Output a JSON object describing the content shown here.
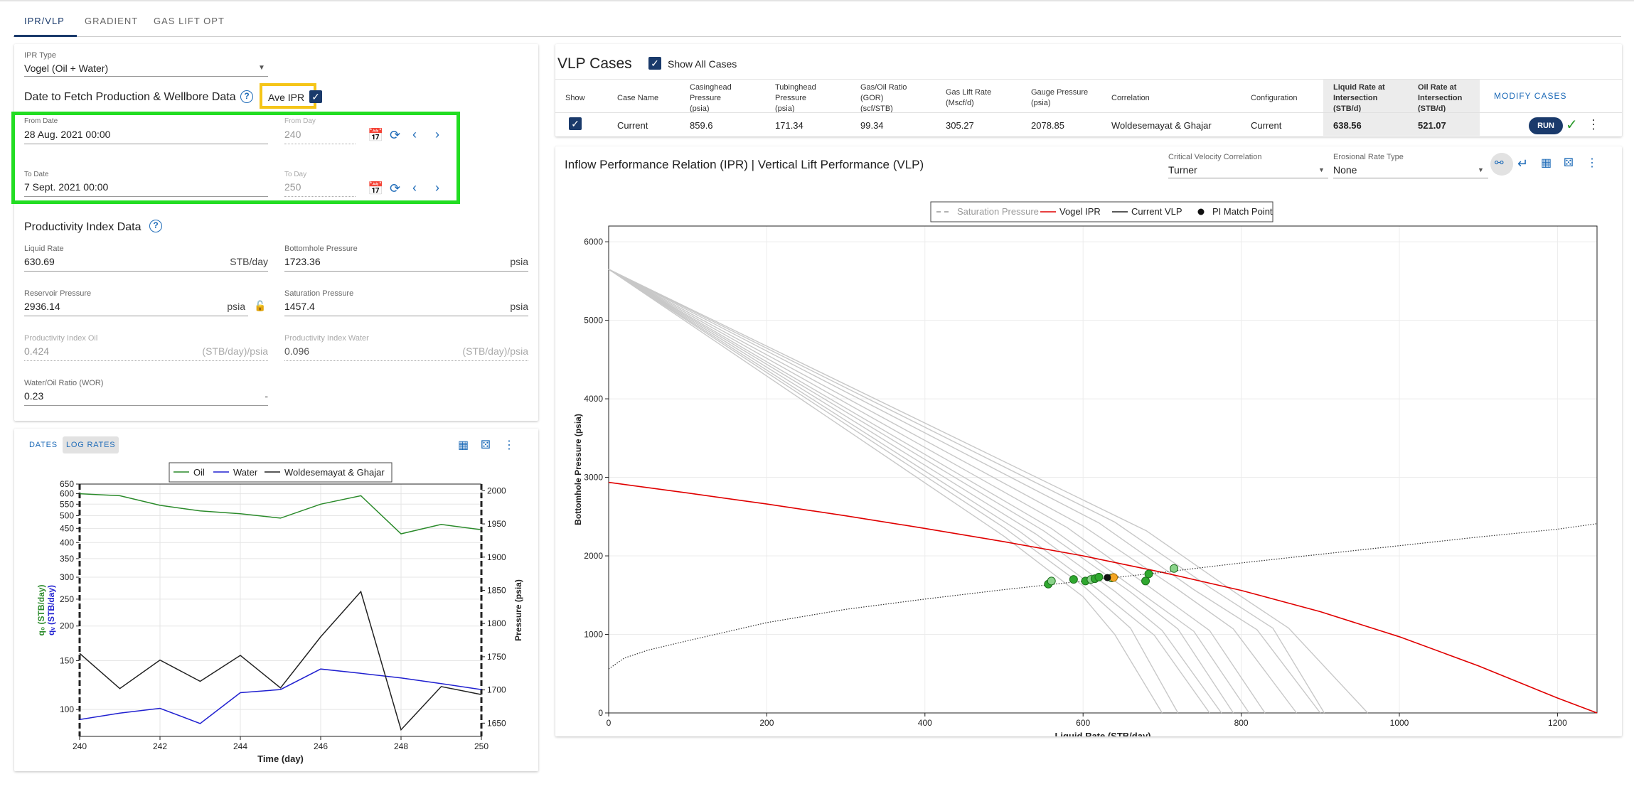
{
  "tabs": [
    "IPR/VLP",
    "GRADIENT",
    "GAS LIFT OPT"
  ],
  "ipr_panel": {
    "ipr_type_label": "IPR Type",
    "ipr_type_value": "Vogel (Oil + Water)",
    "date_section_title": "Date to Fetch Production & Wellbore Data",
    "ave_ipr_label": "Ave IPR",
    "from_date_label": "From Date",
    "from_date_value": "28 Aug. 2021 00:00",
    "from_day_label": "From Day",
    "from_day_value": "240",
    "to_date_label": "To Date",
    "to_date_value": "7 Sept. 2021 00:00",
    "to_day_label": "To Day",
    "to_day_value": "250",
    "pi_section_title": "Productivity Index Data",
    "liquid_rate_label": "Liquid Rate",
    "liquid_rate_value": "630.69",
    "liquid_rate_unit": "STB/day",
    "bhp_label": "Bottomhole Pressure",
    "bhp_value": "1723.36",
    "bhp_unit": "psia",
    "res_pressure_label": "Reservoir Pressure",
    "res_pressure_value": "2936.14",
    "res_pressure_unit": "psia",
    "sat_pressure_label": "Saturation Pressure",
    "sat_pressure_value": "1457.4",
    "sat_pressure_unit": "psia",
    "pi_oil_label": "Productivity Index Oil",
    "pi_oil_value": "0.424",
    "pi_oil_unit": "(STB/day)/psia",
    "pi_water_label": "Productivity Index Water",
    "pi_water_value": "0.096",
    "pi_water_unit": "(STB/day)/psia",
    "wor_label": "Water/Oil Ratio (WOR)",
    "wor_value": "0.23",
    "wor_unit": "-"
  },
  "rates_panel": {
    "dates_btn": "DATES",
    "log_rates_btn": "LOG RATES"
  },
  "vlp": {
    "title": "VLP Cases",
    "show_all_label": "Show All Cases",
    "headers": [
      [
        "Show"
      ],
      [
        "Case Name"
      ],
      [
        "Casinghead",
        "Pressure",
        "(psia)"
      ],
      [
        "Tubinghead",
        "Pressure",
        "(psia)"
      ],
      [
        "Gas/Oil Ratio",
        "(GOR)",
        "(scf/STB)"
      ],
      [
        "Gas Lift Rate",
        "(Mscf/d)"
      ],
      [
        "Gauge Pressure",
        "(psia)"
      ],
      [
        "Correlation"
      ],
      [
        "Configuration"
      ],
      [
        "Liquid Rate at",
        "Intersection",
        "(STB/d)"
      ],
      [
        "Oil Rate at",
        "Intersection",
        "(STB/d)"
      ]
    ],
    "modify_btn": "MODIFY CASES",
    "row": {
      "case_name": "Current",
      "casinghead": "859.6",
      "tubinghead": "171.34",
      "gor": "99.34",
      "gas_lift": "305.27",
      "gauge": "2078.85",
      "correlation": "Woldesemayat & Ghajar",
      "configuration": "Current",
      "liq_rate": "638.56",
      "oil_rate": "521.07",
      "run_btn": "RUN"
    }
  },
  "main_chart_panel": {
    "title": "Inflow Performance Relation (IPR) | Vertical Lift Performance (VLP)",
    "crit_vel_label": "Critical Velocity Correlation",
    "crit_vel_value": "Turner",
    "erosional_label": "Erosional Rate Type",
    "erosional_value": "None"
  },
  "colors": {
    "accent": "#1a3a6b",
    "link": "#1e6bb8",
    "green_box": "#22dd22",
    "yellow_box": "#f5c518",
    "ipr": "#e00000",
    "oil": "#2a8a2a",
    "water": "#2020d0"
  },
  "chart_data": [
    {
      "type": "line",
      "id": "ipr-vlp",
      "xlabel": "Liquid Rate (STB/day)",
      "ylabel": "Bottomhole Pressure (psia)",
      "xlim": [
        0,
        1250
      ],
      "ylim": [
        0,
        6200
      ],
      "xticks": [
        0,
        200,
        400,
        600,
        800,
        1000,
        1200
      ],
      "yticks": [
        0,
        1000,
        2000,
        3000,
        4000,
        5000,
        6000
      ],
      "legend": [
        "Saturation Pressure",
        "Vogel IPR",
        "Current VLP",
        "PI Match Point"
      ],
      "ipr": {
        "name": "Vogel IPR",
        "x": [
          0,
          100,
          200,
          300,
          400,
          500,
          600,
          700,
          800,
          900,
          1000,
          1100,
          1200,
          1250
        ],
        "y": [
          2936,
          2800,
          2660,
          2510,
          2350,
          2180,
          2000,
          1790,
          1560,
          1290,
          970,
          600,
          190,
          0
        ]
      },
      "vlp": {
        "name": "Current VLP",
        "x": [
          0,
          20,
          50,
          100,
          200,
          300,
          400,
          500,
          600,
          700,
          800,
          900,
          1000,
          1100,
          1200,
          1250
        ],
        "y": [
          560,
          700,
          800,
          920,
          1150,
          1320,
          1450,
          1570,
          1680,
          1790,
          1910,
          2020,
          2130,
          2240,
          2340,
          2410
        ]
      },
      "pi_match_point": {
        "x": 630.69,
        "y": 1723.36
      },
      "intersection_point": {
        "x": 638.56,
        "y": 1725
      },
      "vlp_family": [
        {
          "x": [
            0,
            500,
            600,
            640,
            700
          ],
          "y": [
            5650,
            2250,
            1480,
            1000,
            0
          ]
        },
        {
          "x": [
            0,
            500,
            600,
            660,
            720
          ],
          "y": [
            5650,
            2360,
            1620,
            1080,
            0
          ]
        },
        {
          "x": [
            0,
            520,
            620,
            690,
            760
          ],
          "y": [
            5650,
            2310,
            1560,
            990,
            0
          ]
        },
        {
          "x": [
            0,
            540,
            640,
            700,
            775
          ],
          "y": [
            5650,
            2280,
            1550,
            1050,
            0
          ]
        },
        {
          "x": [
            0,
            550,
            660,
            720,
            790
          ],
          "y": [
            5650,
            2320,
            1540,
            1070,
            0
          ]
        },
        {
          "x": [
            0,
            560,
            670,
            740,
            810
          ],
          "y": [
            5650,
            2350,
            1550,
            1040,
            0
          ]
        },
        {
          "x": [
            0,
            580,
            690,
            760,
            830
          ],
          "y": [
            5650,
            2360,
            1560,
            1050,
            0
          ]
        },
        {
          "x": [
            0,
            600,
            720,
            790,
            870
          ],
          "y": [
            5650,
            2380,
            1570,
            1070,
            0
          ]
        },
        {
          "x": [
            0,
            620,
            740,
            820,
            900
          ],
          "y": [
            5650,
            2420,
            1570,
            1060,
            0
          ]
        },
        {
          "x": [
            0,
            680,
            790,
            860,
            960
          ],
          "y": [
            5650,
            2320,
            1550,
            1080,
            0
          ]
        },
        {
          "x": [
            0,
            640,
            760,
            840,
            905
          ],
          "y": [
            5650,
            2430,
            1600,
            1080,
            0
          ]
        }
      ],
      "match_points": [
        {
          "x": 556,
          "y": 1640
        },
        {
          "x": 560,
          "y": 1680
        },
        {
          "x": 588,
          "y": 1700
        },
        {
          "x": 603,
          "y": 1680
        },
        {
          "x": 610,
          "y": 1700
        },
        {
          "x": 615,
          "y": 1710
        },
        {
          "x": 620,
          "y": 1730
        },
        {
          "x": 636,
          "y": 1720
        },
        {
          "x": 679,
          "y": 1680
        },
        {
          "x": 683,
          "y": 1770
        },
        {
          "x": 715,
          "y": 1840
        }
      ]
    },
    {
      "type": "line",
      "id": "rates",
      "xlabel": "Time (day)",
      "y1label": "q₀ (STB/day)",
      "y1label2": "qᵥ (STB/day)",
      "y2label": "Pressure (psia)",
      "x": [
        240,
        241,
        242,
        243,
        244,
        245,
        246,
        247,
        248,
        249,
        250
      ],
      "xticks": [
        240,
        242,
        244,
        246,
        248,
        250
      ],
      "y1ticks": [
        100,
        150,
        200,
        250,
        300,
        350,
        400,
        450,
        500,
        550,
        600,
        650
      ],
      "y2ticks": [
        1650,
        1700,
        1750,
        1800,
        1850,
        1900,
        1950,
        2000
      ],
      "series": [
        {
          "name": "Oil",
          "axis": "left",
          "values": [
            600,
            590,
            545,
            520,
            508,
            490,
            550,
            590,
            430,
            465,
            445
          ]
        },
        {
          "name": "Water",
          "axis": "left",
          "values": [
            92,
            97,
            101,
            89,
            115,
            118,
            140,
            135,
            130,
            124,
            118
          ]
        },
        {
          "name": "Woldesemayat & Ghajar",
          "axis": "right",
          "values": [
            1755,
            1702,
            1745,
            1713,
            1752,
            1703,
            1780,
            1848,
            1640,
            1705,
            1693
          ]
        }
      ]
    }
  ]
}
